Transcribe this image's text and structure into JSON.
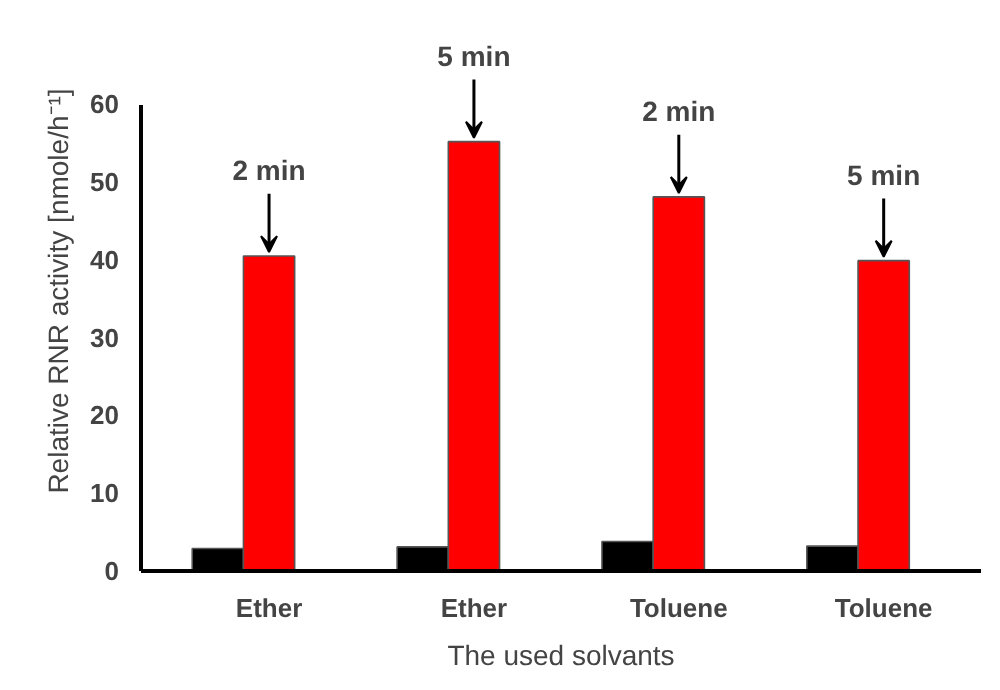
{
  "chart_data": {
    "type": "bar",
    "xlabel": "The used solvants",
    "ylabel": "Relative RNR activity [nmole/h⁻¹]",
    "categories": [
      "Ether",
      "Ether",
      "Toluene",
      "Toluene"
    ],
    "series": [
      {
        "color": "#000000",
        "values": [
          2.9,
          3.1,
          3.8,
          3.2
        ]
      },
      {
        "color": "#ff0000",
        "values": [
          40.5,
          55.2,
          48.1,
          39.9
        ]
      }
    ],
    "ylim": [
      0,
      60
    ],
    "yticks": [
      0,
      10,
      20,
      30,
      40,
      50,
      60
    ],
    "grid": false,
    "annotations": [
      {
        "text": "2 min",
        "y": 40.5
      },
      {
        "text": "5 min",
        "y": 55.2
      },
      {
        "text": "2 min",
        "y": 48.1
      },
      {
        "text": "5 min",
        "y": 39.9
      }
    ]
  }
}
